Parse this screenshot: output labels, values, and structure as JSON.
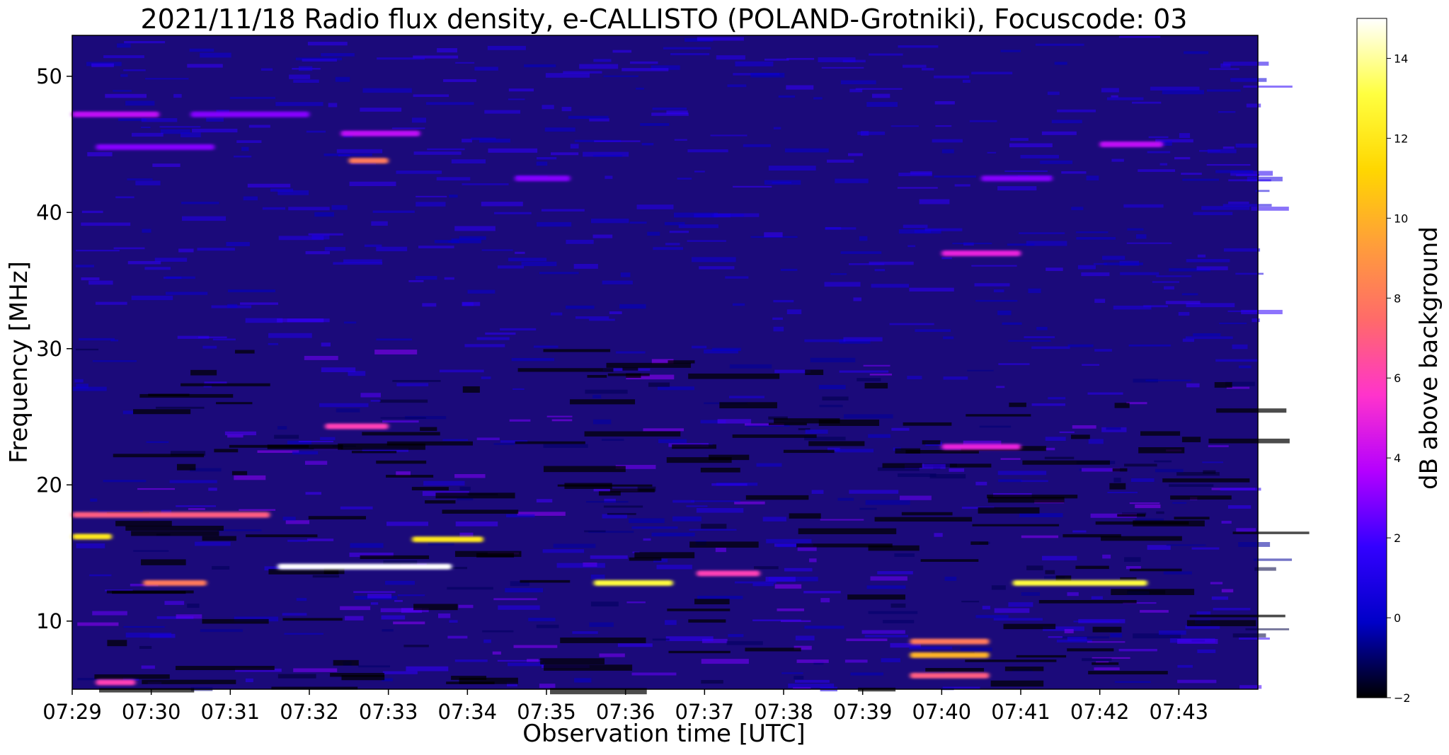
{
  "chart_data": {
    "type": "heatmap",
    "title": "2021/11/18  Radio flux density, e-CALLISTO (POLAND-Grotniki), Focuscode: 03",
    "xlabel": "Observation time [UTC]",
    "ylabel": "Frequency [MHz]",
    "colorbar_label": "dB above background",
    "x_ticks": [
      "07:29",
      "07:30",
      "07:31",
      "07:32",
      "07:33",
      "07:34",
      "07:35",
      "07:36",
      "07:37",
      "07:38",
      "07:39",
      "07:40",
      "07:41",
      "07:42",
      "07:43"
    ],
    "x_range_minutes": [
      0,
      15
    ],
    "y_ticks": [
      10,
      20,
      30,
      40,
      50
    ],
    "ylim": [
      5,
      53
    ],
    "colorbar_ticks": [
      -2,
      0,
      2,
      4,
      6,
      8,
      10,
      12,
      14
    ],
    "colorbar_range": [
      -2,
      15
    ],
    "colormap": [
      "#000000",
      "#0000c8",
      "#3300ff",
      "#b400ff",
      "#ff33cc",
      "#ff6a6a",
      "#ff9e3a",
      "#ffd700",
      "#ffff40",
      "#ffffff"
    ],
    "background_level_db": 1,
    "features": [
      {
        "t_start": 0.0,
        "t_end": 1.1,
        "freq": 47.2,
        "db": 4
      },
      {
        "t_start": 1.5,
        "t_end": 3.0,
        "freq": 47.2,
        "db": 3
      },
      {
        "t_start": 3.5,
        "t_end": 4.0,
        "freq": 43.8,
        "db": 8
      },
      {
        "t_start": 3.4,
        "t_end": 4.4,
        "freq": 45.8,
        "db": 4
      },
      {
        "t_start": 0.3,
        "t_end": 1.8,
        "freq": 44.8,
        "db": 3
      },
      {
        "t_start": 11.0,
        "t_end": 12.0,
        "freq": 37.0,
        "db": 5
      },
      {
        "t_start": 5.6,
        "t_end": 6.3,
        "freq": 42.5,
        "db": 3
      },
      {
        "t_start": 11.5,
        "t_end": 12.4,
        "freq": 42.5,
        "db": 3
      },
      {
        "t_start": 13.0,
        "t_end": 13.8,
        "freq": 45.0,
        "db": 4
      },
      {
        "t_start": 0.0,
        "t_end": 0.5,
        "freq": 16.2,
        "db": 12
      },
      {
        "t_start": 0.0,
        "t_end": 2.5,
        "freq": 17.8,
        "db": 7
      },
      {
        "t_start": 2.6,
        "t_end": 4.8,
        "freq": 14.0,
        "db": 15
      },
      {
        "t_start": 3.2,
        "t_end": 4.0,
        "freq": 24.3,
        "db": 6
      },
      {
        "t_start": 4.3,
        "t_end": 5.2,
        "freq": 16.0,
        "db": 12
      },
      {
        "t_start": 6.6,
        "t_end": 7.6,
        "freq": 12.8,
        "db": 13
      },
      {
        "t_start": 11.9,
        "t_end": 13.6,
        "freq": 12.8,
        "db": 13
      },
      {
        "t_start": 0.9,
        "t_end": 1.7,
        "freq": 12.8,
        "db": 8
      },
      {
        "t_start": 10.6,
        "t_end": 11.6,
        "freq": 7.5,
        "db": 10
      },
      {
        "t_start": 10.6,
        "t_end": 11.6,
        "freq": 8.5,
        "db": 8
      },
      {
        "t_start": 10.6,
        "t_end": 11.6,
        "freq": 6.0,
        "db": 7
      },
      {
        "t_start": 11.0,
        "t_end": 12.0,
        "freq": 22.8,
        "db": 5
      },
      {
        "t_start": 7.9,
        "t_end": 8.7,
        "freq": 13.5,
        "db": 6
      },
      {
        "t_start": 0.3,
        "t_end": 0.8,
        "freq": 5.5,
        "db": 6
      }
    ]
  }
}
